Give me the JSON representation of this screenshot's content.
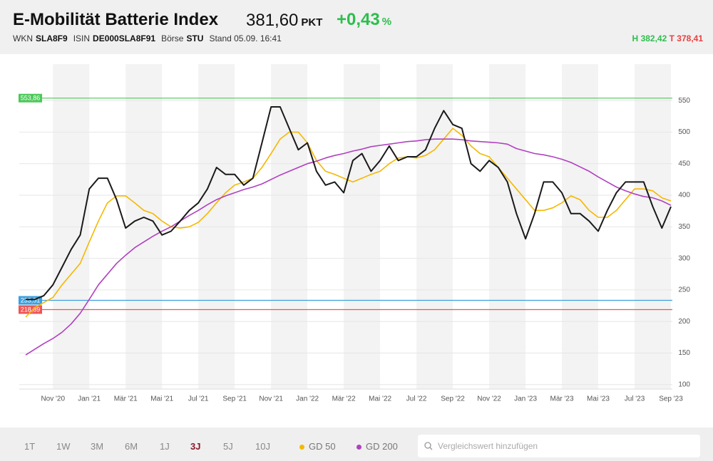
{
  "header": {
    "title": "E-Mobilität Batterie Index",
    "price": "381,60",
    "unit": "PKT",
    "change": "+0,43",
    "change_unit": "%",
    "meta": [
      {
        "key": "WKN",
        "value": "SLA8F9"
      },
      {
        "key": "ISIN",
        "value": "DE000SLA8F91"
      },
      {
        "key": "Börse",
        "value": "STU"
      }
    ],
    "stand": "Stand 05.09. 16:41",
    "high_key": "H",
    "high": "382,42",
    "low_key": "T",
    "low": "378,41"
  },
  "chart_data": {
    "type": "line",
    "categories": [
      null,
      null,
      null,
      "Nov '20",
      null,
      null,
      null,
      "Jan '21",
      null,
      null,
      null,
      "Mär '21",
      null,
      null,
      null,
      "Mai '21",
      null,
      null,
      null,
      "Jul '21",
      null,
      null,
      null,
      "Sep '21",
      null,
      null,
      null,
      "Nov '21",
      null,
      null,
      null,
      "Jan '22",
      null,
      null,
      null,
      "Mär '22",
      null,
      null,
      null,
      "Mai '22",
      null,
      null,
      null,
      "Jul '22",
      null,
      null,
      null,
      "Sep '22",
      null,
      null,
      null,
      "Nov '22",
      null,
      null,
      null,
      "Jan '23",
      null,
      null,
      null,
      "Mär '23",
      null,
      null,
      null,
      "Mai '23",
      null,
      null,
      null,
      "Jul '23",
      null,
      null,
      null,
      "Sep '23"
    ],
    "series": [
      {
        "color": "#1a1a1a",
        "values": [
          235,
          235,
          241,
          258,
          286,
          314,
          337,
          410,
          427,
          427,
          393,
          348,
          359,
          365,
          359,
          337,
          343,
          359,
          376,
          388,
          410,
          444,
          433,
          433,
          416,
          427,
          483,
          540,
          540,
          506,
          472,
          483,
          438,
          416,
          421,
          404,
          455,
          466,
          438,
          455,
          478,
          455,
          461,
          461,
          472,
          506,
          534,
          512,
          506,
          450,
          438,
          455,
          444,
          421,
          371,
          331,
          371,
          421,
          421,
          404,
          371,
          371,
          359,
          343,
          376,
          404,
          421,
          421,
          421,
          382,
          348,
          382
        ]
      },
      {
        "name": "GD 50",
        "color": "#f5b800",
        "values": [
          207,
          222,
          230,
          238,
          258,
          275,
          292,
          326,
          359,
          388,
          399,
          399,
          388,
          376,
          371,
          359,
          350,
          348,
          350,
          357,
          371,
          388,
          404,
          416,
          421,
          427,
          444,
          466,
          489,
          500,
          500,
          483,
          455,
          438,
          433,
          427,
          421,
          427,
          433,
          438,
          450,
          459,
          461,
          459,
          463,
          472,
          489,
          506,
          495,
          478,
          466,
          461,
          444,
          427,
          410,
          393,
          376,
          376,
          380,
          388,
          399,
          393,
          376,
          365,
          365,
          376,
          393,
          410,
          410,
          407,
          396,
          391
        ]
      },
      {
        "name": "GD 200",
        "color": "#b040c0",
        "values": [
          147,
          156,
          165,
          173,
          183,
          196,
          213,
          235,
          258,
          275,
          292,
          305,
          317,
          326,
          335,
          343,
          350,
          359,
          368,
          376,
          385,
          393,
          399,
          404,
          409,
          413,
          418,
          425,
          432,
          438,
          444,
          450,
          454,
          459,
          463,
          466,
          470,
          473,
          477,
          479,
          481,
          483,
          485,
          486,
          488,
          489,
          489,
          489,
          488,
          486,
          485,
          484,
          483,
          481,
          474,
          470,
          466,
          464,
          461,
          457,
          452,
          445,
          438,
          429,
          421,
          413,
          407,
          402,
          398,
          396,
          391,
          384
        ]
      }
    ],
    "levels": [
      {
        "value": 553.86,
        "label": "553,86",
        "color": "#4cc85a"
      },
      {
        "value": 233.51,
        "label": "233,51",
        "color": "#3aa0e0"
      },
      {
        "value": 218.89,
        "label": "218,89",
        "color": "#ee5555"
      }
    ],
    "ylim": [
      93,
      619
    ],
    "yticks": [
      100,
      150,
      200,
      250,
      300,
      350,
      400,
      450,
      500,
      550
    ],
    "grid": true
  },
  "toolbar": {
    "ranges": [
      "1T",
      "1W",
      "3M",
      "6M",
      "1J",
      "3J",
      "5J",
      "10J"
    ],
    "active_range": 5,
    "search_placeholder": "Vergleichswert hinzufügen"
  }
}
